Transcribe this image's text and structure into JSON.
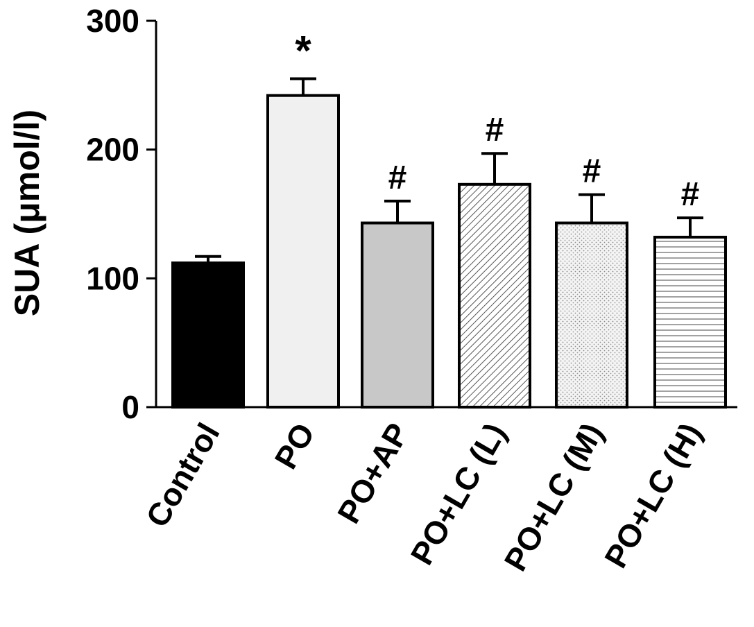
{
  "chart_data": {
    "type": "bar",
    "title": "",
    "xlabel": "",
    "ylabel": "SUA (μmol/l)",
    "ylim": [
      0,
      300
    ],
    "yticks": [
      0,
      100,
      200,
      300
    ],
    "ytick_labels": [
      "0",
      "100",
      "200",
      "300"
    ],
    "grid": false,
    "legend": "none",
    "categories": [
      "Control",
      "PO",
      "PO+AP",
      "PO+LC (L)",
      "PO+LC (M)",
      "PO+LC (H)"
    ],
    "series": [
      {
        "values": [
          112,
          242,
          143,
          173,
          143,
          132
        ],
        "errors": [
          5,
          13,
          17,
          24,
          22,
          15
        ],
        "significance": [
          "",
          "*",
          "#",
          "#",
          "#",
          "#"
        ],
        "fills": [
          "solid",
          "solid",
          "solid",
          "diagonal-hatch",
          "stipple",
          "horizontal-lines"
        ],
        "colors": [
          "#000000",
          "#f0f0f0",
          "#c8c8c8",
          "#ffffff",
          "#ffffff",
          "#ffffff"
        ]
      }
    ]
  }
}
